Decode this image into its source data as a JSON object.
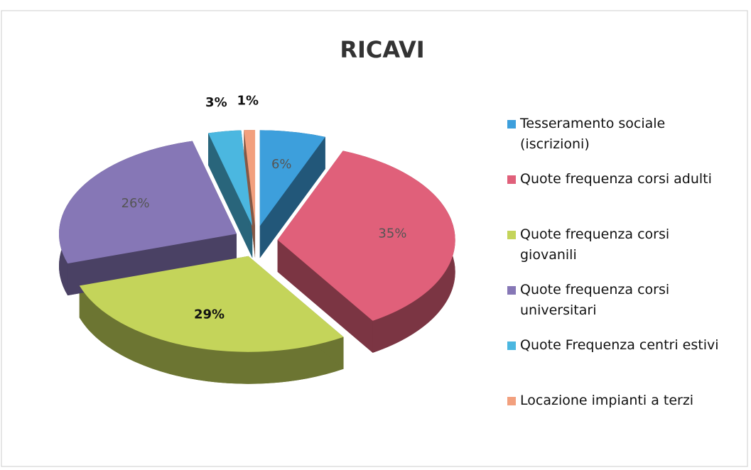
{
  "chart_data": {
    "type": "pie",
    "title": "RICAVI",
    "categories": [
      "Tesseramento sociale (iscrizioni)",
      "Quote frequenza corsi adulti",
      "Quote frequenza corsi giovanili",
      "Quote frequenza corsi universitari",
      "Quote Frequenza centri estivi",
      "Locazione impianti a terzi"
    ],
    "values": [
      6,
      35,
      29,
      26,
      3,
      1
    ],
    "value_labels": [
      "6%",
      "35%",
      "29%",
      "26%",
      "3%",
      "1%"
    ],
    "colors": [
      "#3d9fdc",
      "#e0607a",
      "#c4d45a",
      "#8677b6",
      "#4bb7e0",
      "#f2a07e"
    ],
    "legend": "right"
  }
}
